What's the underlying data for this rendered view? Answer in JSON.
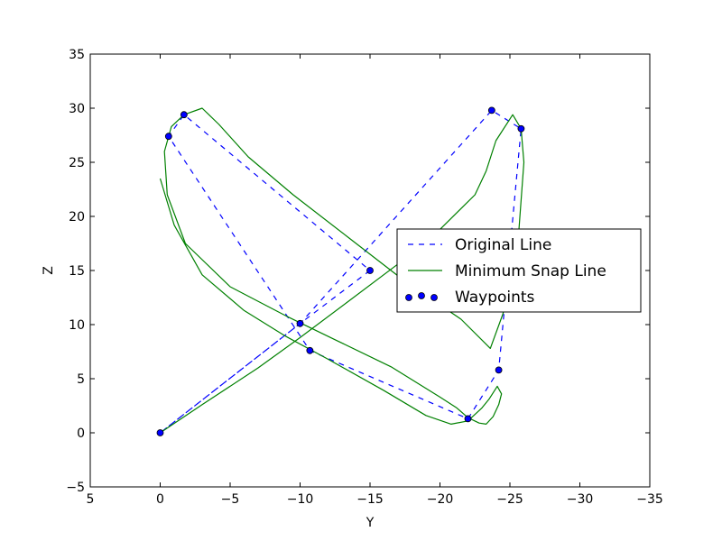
{
  "chart_data": {
    "type": "line",
    "title": "",
    "xlabel": "Y",
    "ylabel": "Z",
    "xlim": [
      5,
      -35
    ],
    "ylim": [
      -5,
      35
    ],
    "x_ticks": [
      5,
      0,
      -5,
      -10,
      -15,
      -20,
      -25,
      -30,
      -35
    ],
    "y_ticks": [
      -5,
      0,
      5,
      10,
      15,
      20,
      25,
      30,
      35
    ],
    "x_tick_labels": [
      "5",
      "0",
      "−5",
      "−10",
      "−15",
      "−20",
      "−25",
      "−30",
      "−35"
    ],
    "y_tick_labels": [
      "−5",
      "0",
      "5",
      "10",
      "15",
      "20",
      "25",
      "30",
      "35"
    ],
    "grid": false,
    "legend_position": "center-right",
    "series": [
      {
        "name": "Original Line",
        "kind": "line",
        "style": "dashed",
        "color": "#0000ff",
        "x": [
          0.0,
          -10.0,
          -15.0,
          -1.7,
          -0.6,
          -10.7,
          -22.0,
          -24.2,
          -25.8,
          -23.7,
          -10.0,
          0.0
        ],
        "y": [
          0.0,
          10.1,
          15.0,
          29.4,
          27.4,
          7.6,
          1.3,
          5.8,
          28.1,
          29.8,
          10.1,
          0.0
        ]
      },
      {
        "name": "Minimum Snap Line",
        "kind": "line",
        "style": "solid",
        "color": "#008000",
        "x": [
          0.0,
          -3.0,
          -7.0,
          -10.0,
          -13.5,
          -17.0,
          -20.0,
          -22.5,
          -23.3,
          -24.0,
          -25.2,
          -25.8,
          -26.0,
          -25.6,
          -24.5,
          -23.6,
          -21.5,
          -17.5,
          -13.5,
          -9.5,
          -6.3,
          -4.2,
          -3.0,
          -1.7,
          -0.8,
          -0.3,
          -0.5,
          -1.8,
          -5.0,
          -9.0,
          -12.5,
          -16.5,
          -20.0,
          -21.2,
          -22.0,
          -22.8,
          -23.3,
          -23.8,
          -24.2,
          -24.4,
          -24.1,
          -23.5,
          -23.0,
          -22.0,
          -20.8,
          -19.0,
          -16.0,
          -12.0,
          -9.0,
          -6.0,
          -3.0,
          -1.0,
          0.0
        ],
        "y": [
          0.0,
          2.6,
          6.0,
          8.8,
          12.2,
          15.6,
          18.8,
          22.0,
          24.2,
          27.0,
          29.4,
          28.1,
          25.0,
          18.0,
          11.0,
          7.8,
          10.5,
          14.0,
          18.0,
          22.0,
          25.5,
          28.5,
          30.0,
          29.4,
          28.3,
          26.0,
          22.0,
          17.5,
          13.5,
          10.8,
          8.6,
          6.1,
          3.3,
          2.3,
          1.4,
          0.9,
          0.8,
          1.5,
          2.6,
          3.6,
          4.3,
          3.1,
          2.3,
          1.1,
          0.8,
          1.6,
          3.9,
          6.8,
          8.9,
          11.3,
          14.6,
          19.2,
          23.5
        ]
      },
      {
        "name": "Waypoints",
        "kind": "scatter",
        "color": "#0000ff",
        "edge_color": "#000000",
        "x": [
          0.0,
          -10.0,
          -15.0,
          -1.7,
          -0.6,
          -10.7,
          -22.0,
          -24.2,
          -25.8,
          -23.7
        ],
        "y": [
          0.0,
          10.1,
          15.0,
          29.4,
          27.4,
          7.6,
          1.3,
          5.8,
          28.1,
          29.8
        ]
      }
    ]
  }
}
